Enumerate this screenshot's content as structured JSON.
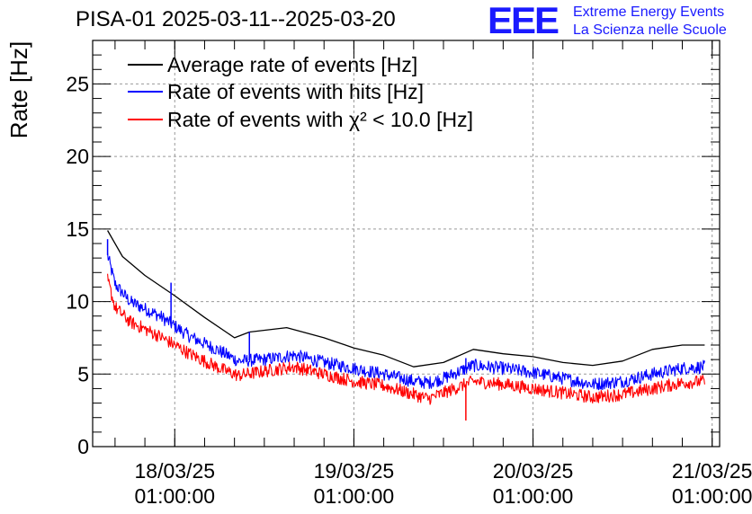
{
  "header": {
    "title": "PISA-01 2025-03-11--2025-03-20"
  },
  "logo": {
    "mark": "EEE",
    "line1": "Extreme Energy Events",
    "line2": "La Scienza nelle Scuole",
    "color": "#1a1aff"
  },
  "chart_data": {
    "type": "line",
    "title": "PISA-01 2025-03-11--2025-03-20",
    "xlabel": "",
    "ylabel": "Rate [Hz]",
    "ylim": [
      0,
      28
    ],
    "xlim": [
      "2025-03-17 14:00",
      "2025-03-21 02:00"
    ],
    "yticks": [
      0,
      5,
      10,
      15,
      20,
      25
    ],
    "xticks": [
      {
        "date": "18/03/25",
        "time": "01:00:00",
        "x": "2025-03-18 01:00"
      },
      {
        "date": "19/03/25",
        "time": "01:00:00",
        "x": "2025-03-19 01:00"
      },
      {
        "date": "20/03/25",
        "time": "01:00:00",
        "x": "2025-03-20 01:00"
      },
      {
        "date": "21/03/25",
        "time": "01:00:00",
        "x": "2025-03-21 01:00"
      }
    ],
    "grid": true,
    "legend_position": "top-left",
    "series": [
      {
        "name": "Average rate of events [Hz]",
        "color": "#000000",
        "noise": 0,
        "x": [
          "2025-03-17 16:00",
          "2025-03-17 18:00",
          "2025-03-17 21:00",
          "2025-03-18 01:00",
          "2025-03-18 05:00",
          "2025-03-18 09:00",
          "2025-03-18 11:00",
          "2025-03-18 16:00",
          "2025-03-18 21:00",
          "2025-03-19 01:00",
          "2025-03-19 05:00",
          "2025-03-19 09:00",
          "2025-03-19 13:00",
          "2025-03-19 17:00",
          "2025-03-19 21:00",
          "2025-03-20 01:00",
          "2025-03-20 05:00",
          "2025-03-20 09:00",
          "2025-03-20 13:00",
          "2025-03-20 17:00",
          "2025-03-20 21:00",
          "2025-03-21 00:00"
        ],
        "y": [
          14.9,
          13.1,
          11.8,
          10.4,
          8.9,
          7.5,
          7.9,
          8.2,
          7.5,
          6.8,
          6.3,
          5.5,
          5.8,
          6.7,
          6.4,
          6.2,
          5.8,
          5.6,
          5.9,
          6.7,
          7.0,
          7.0
        ]
      },
      {
        "name": "Rate of events with hits [Hz]",
        "color": "#0000ff",
        "noise": 0.45,
        "x": [
          "2025-03-17 16:00",
          "2025-03-17 17:00",
          "2025-03-17 19:00",
          "2025-03-17 23:00",
          "2025-03-18 03:00",
          "2025-03-18 07:00",
          "2025-03-18 09:30",
          "2025-03-18 13:00",
          "2025-03-18 17:00",
          "2025-03-18 21:00",
          "2025-03-19 01:00",
          "2025-03-19 05:00",
          "2025-03-19 09:00",
          "2025-03-19 11:00",
          "2025-03-19 13:00",
          "2025-03-19 17:00",
          "2025-03-19 21:00",
          "2025-03-20 01:00",
          "2025-03-20 05:00",
          "2025-03-20 09:00",
          "2025-03-20 13:00",
          "2025-03-20 17:00",
          "2025-03-20 21:00",
          "2025-03-21 00:00"
        ],
        "y": [
          13.2,
          11.2,
          10.0,
          9.0,
          7.6,
          6.6,
          5.9,
          6.0,
          6.3,
          5.8,
          5.4,
          5.0,
          4.5,
          4.4,
          4.7,
          5.6,
          5.4,
          5.1,
          4.7,
          4.3,
          4.5,
          5.0,
          5.4,
          5.5
        ]
      },
      {
        "name": "Rate of events with χ² < 10.0 [Hz]",
        "color": "#ff0000",
        "noise": 0.45,
        "x": [
          "2025-03-17 16:00",
          "2025-03-17 17:00",
          "2025-03-17 19:00",
          "2025-03-17 23:00",
          "2025-03-18 03:00",
          "2025-03-18 07:00",
          "2025-03-18 09:30",
          "2025-03-18 13:00",
          "2025-03-18 17:00",
          "2025-03-18 21:00",
          "2025-03-19 01:00",
          "2025-03-19 05:00",
          "2025-03-19 09:00",
          "2025-03-19 11:00",
          "2025-03-19 13:00",
          "2025-03-19 17:00",
          "2025-03-19 21:00",
          "2025-03-20 01:00",
          "2025-03-20 05:00",
          "2025-03-20 09:00",
          "2025-03-20 13:00",
          "2025-03-20 17:00",
          "2025-03-20 21:00",
          "2025-03-21 00:00"
        ],
        "y": [
          11.5,
          9.6,
          8.6,
          7.6,
          6.4,
          5.4,
          4.9,
          5.2,
          5.5,
          5.0,
          4.5,
          4.2,
          3.6,
          3.3,
          3.7,
          4.5,
          4.3,
          4.0,
          3.7,
          3.4,
          3.6,
          4.0,
          4.4,
          4.5
        ]
      }
    ],
    "spikes": [
      {
        "series": 1,
        "x": "2025-03-17 16:00",
        "y": 14.3
      },
      {
        "series": 1,
        "x": "2025-03-18 00:30",
        "y": 11.3
      },
      {
        "series": 1,
        "x": "2025-03-18 11:00",
        "y": 7.9
      },
      {
        "series": 1,
        "x": "2025-03-19 16:00",
        "y": 6.1
      },
      {
        "series": 2,
        "x": "2025-03-19 16:00",
        "y": 1.8
      }
    ]
  }
}
